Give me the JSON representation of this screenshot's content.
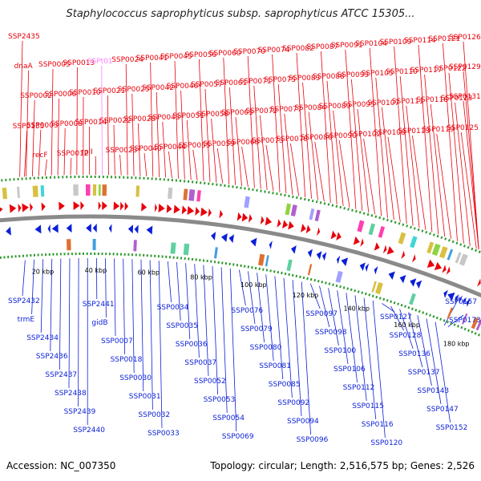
{
  "title": "Staphylococcus saprophyticus subsp. saprophyticus ATCC 15305...",
  "footer": {
    "accession": "Accession: NC_007350",
    "summary": "Topology: circular; Length: 2,516,575 bp; Genes: 2,526"
  },
  "colors": {
    "forward": "#e8000b",
    "reverse": "#0b1fd8",
    "highlight": "#ff80ff",
    "backbone": "#8a8a8a",
    "ticks": "#2f9a2f",
    "scale_text": "#000000"
  },
  "scale_labels": [
    "20 kbp",
    "40 kbp",
    "60 kbp",
    "80 kbp",
    "100 kbp",
    "120 kbp",
    "140 kbp",
    "160 kbp",
    "180 kbp"
  ],
  "top_labels": [
    "SSP2435",
    "dnaA",
    "SSP0002",
    "SSP0003",
    "recF",
    "SSP0005",
    "SSP0006",
    "SSP0008",
    "SSP0012",
    "SSP0013",
    "SSP0010",
    "SSP0014",
    "rplI",
    "SSPt01",
    "SSP0021",
    "SSP0022",
    "SSP0023",
    "SSP0024",
    "SSP0025",
    "SSP0028",
    "SSP0040",
    "SSP0041",
    "SSP0042",
    "SSP0043",
    "SSP0044",
    "SSP0045",
    "SSP0046",
    "SSP0051",
    "SSP0055",
    "SSP0056",
    "SSP0057",
    "SSP0058",
    "SSP0059",
    "SSP0060",
    "SSP0061",
    "SSP0063",
    "SSP0068",
    "SSP0070",
    "SSP0071",
    "SSP0072",
    "SSP0073",
    "SSP0074",
    "SSP0075",
    "SSP0077",
    "SSP0078",
    "SSP0082",
    "SSP0083",
    "SSP0084",
    "SSP0086",
    "SSP0087",
    "SSP0088",
    "SSP0089",
    "SSP0090",
    "SSP0091",
    "SSP0093",
    "SSP0095",
    "SSP0102",
    "SSP0104",
    "SSP0105",
    "SSP0107",
    "SSP0108",
    "SSP0109",
    "SSP0110",
    "SSP0111",
    "SSP0113",
    "SSP0114",
    "SSP0117",
    "SSP0118",
    "SSP0119",
    "SSP0121",
    "SSP0122",
    "SSP0123",
    "SSP0125",
    "SSP0126",
    "SSP0129",
    "SSP0131",
    "SSP0135"
  ],
  "bottom_labels": [
    "SSP2432",
    "trmE",
    "SSP2434",
    "SSP2436",
    "SSP2437",
    "SSP2438",
    "SSP2439",
    "SSP2440",
    "SSP2441",
    "gidB",
    "SSP0007",
    "SSP0018",
    "SSP0030",
    "SSP0031",
    "SSP0032",
    "SSP0033",
    "SSP0034",
    "SSP0035",
    "SSP0036",
    "SSP0037",
    "SSP0052",
    "SSP0053",
    "SSP0054",
    "SSP0069",
    "SSP0076",
    "SSP0079",
    "SSP0080",
    "SSP0081",
    "SSP0085",
    "SSP0092",
    "SSP0094",
    "SSP0096",
    "SSP0097",
    "SSP0098",
    "SSP0100",
    "SSP0106",
    "SSP0112",
    "SSP0115",
    "SSP0116",
    "SSP0120",
    "SSP0127",
    "SSP0128",
    "SSP0136",
    "SSP0137",
    "SSP0143",
    "SSP0147",
    "SSP0152",
    "SSP0157",
    "SSP0173"
  ]
}
